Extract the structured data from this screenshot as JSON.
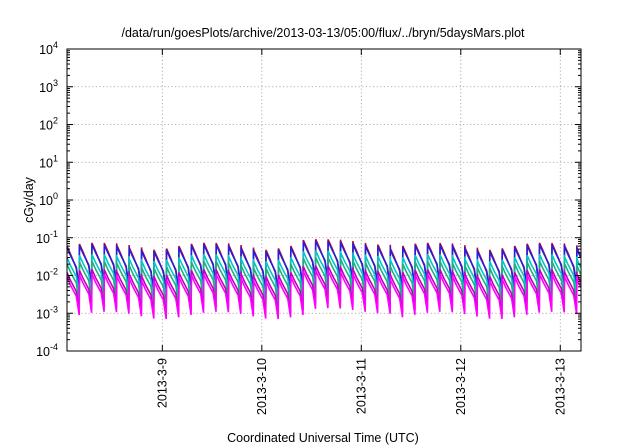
{
  "chart_data": {
    "type": "line",
    "title": "/data/run/goesPlots/archive/2013-03-13/05:00/flux/../bryn/5daysMars.plot",
    "xlabel": "Coordinated Universal Time (UTC)",
    "ylabel": "cGy/day",
    "y_scale": "log",
    "ylim_exponents": [
      -4,
      4
    ],
    "y_tick_exponents": [
      "-4",
      "-3",
      "-2",
      "-1",
      "0",
      "1",
      "2",
      "3",
      "4"
    ],
    "y_tick_base": "10",
    "x_range_days": [
      "2013-03-08 01:00",
      "2013-03-13 05:00"
    ],
    "x_ticks": [
      {
        "label": "2013-3-9",
        "day": 1
      },
      {
        "label": "2013-3-10",
        "day": 2
      },
      {
        "label": "2013-3-11",
        "day": 3
      },
      {
        "label": "2013-3-12",
        "day": 4
      },
      {
        "label": "2013-3-13",
        "day": 5
      }
    ],
    "grid": true,
    "legend": "none",
    "sawtooth_cycles_per_day": 8,
    "series": [
      {
        "color": "#e00000",
        "low_value": 0.004,
        "high_value": 0.06
      },
      {
        "color": "#2020e0",
        "low_value": 0.005,
        "high_value": 0.055
      },
      {
        "color": "#00c8c8",
        "low_value": 0.003,
        "high_value": 0.03
      },
      {
        "color": "#20b080",
        "low_value": 0.002,
        "high_value": 0.02
      },
      {
        "color": "#c000c0",
        "low_value": 0.0012,
        "high_value": 0.012
      },
      {
        "color": "#ff00ff",
        "low_value": 0.0009,
        "high_value": 0.009
      }
    ]
  }
}
